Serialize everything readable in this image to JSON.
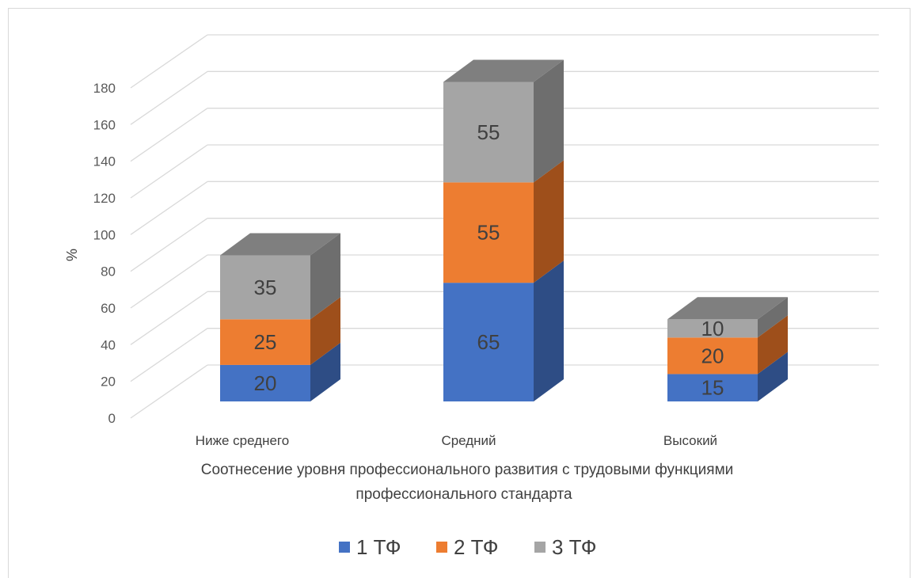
{
  "chart_data": {
    "type": "bar",
    "subtype": "stacked-3d",
    "categories": [
      "Ниже среднего",
      "Средний",
      "Высокий"
    ],
    "series": [
      {
        "name": "1 ТФ",
        "values": [
          20,
          65,
          15
        ],
        "color": "#4472c4",
        "side_color": "#2e4d85",
        "top_color": "#3a5fa3"
      },
      {
        "name": "2 ТФ",
        "values": [
          25,
          55,
          20
        ],
        "color": "#ed7d31",
        "side_color": "#9e4f1b",
        "top_color": "#c86524"
      },
      {
        "name": "3 ТФ",
        "values": [
          35,
          55,
          10
        ],
        "color": "#a5a5a5",
        "side_color": "#6e6e6e",
        "top_color": "#7f7f7f"
      }
    ],
    "ylim": [
      0,
      180
    ],
    "yticks": [
      0,
      20,
      40,
      60,
      80,
      100,
      120,
      140,
      160,
      180
    ],
    "ylabel": "%",
    "xlabel_lines": [
      "Соотнесение уровня профессионального развития с трудовыми функциями",
      "профессионального стандарта"
    ],
    "grid": true,
    "legend": "bottom"
  }
}
